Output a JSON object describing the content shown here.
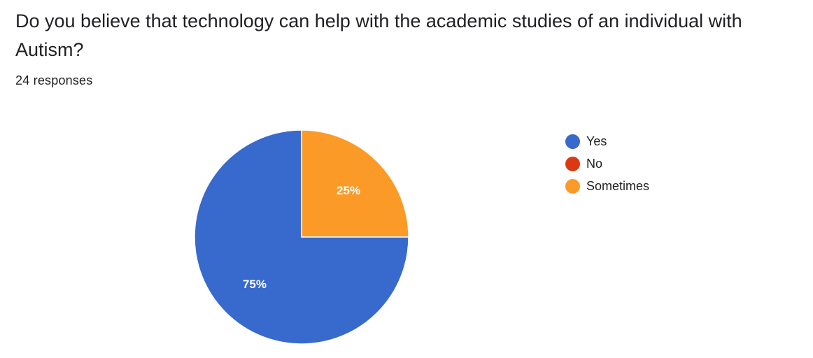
{
  "question": {
    "title": "Do you believe that technology can help with the academic studies of an individual with Autism?",
    "response_count": "24 responses"
  },
  "chart_data": {
    "type": "pie",
    "title": "",
    "categories": [
      "Yes",
      "No",
      "Sometimes"
    ],
    "values": [
      75,
      0,
      25
    ],
    "value_labels": [
      "75%",
      "",
      "25%"
    ],
    "colors": [
      "#3869cc",
      "#dc3912",
      "#fb9a27"
    ],
    "legend_position": "right"
  }
}
